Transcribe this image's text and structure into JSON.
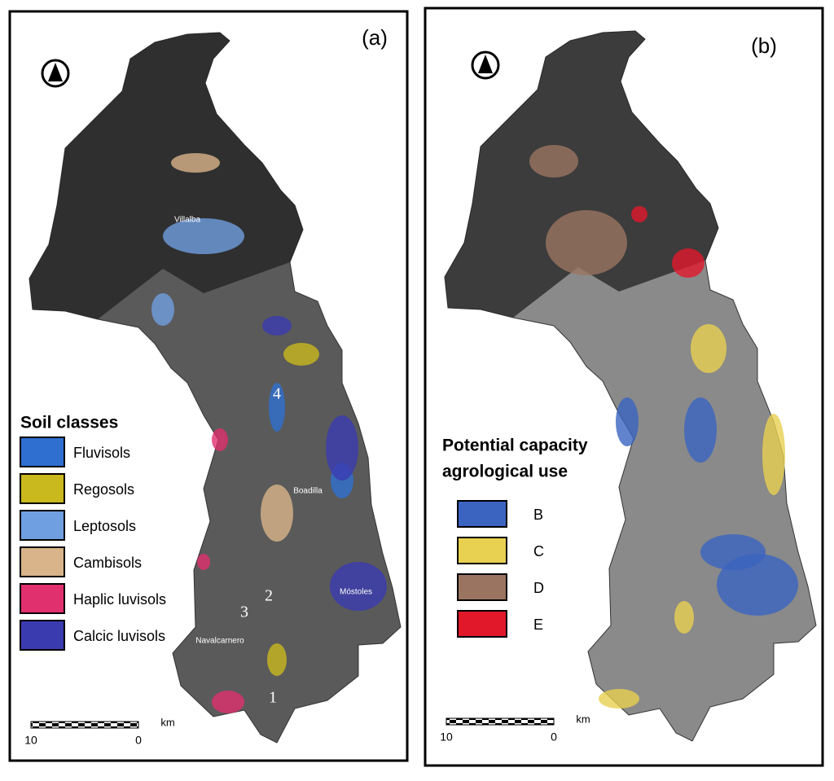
{
  "panels": [
    {
      "label": "(a)",
      "legend": {
        "title_lines": [
          "Soil classes"
        ],
        "items": [
          {
            "label": "Fluvisols",
            "color": "#2f6fd0"
          },
          {
            "label": "Regosols",
            "color": "#c9b81e"
          },
          {
            "label": "Leptosols",
            "color": "#6f9fe0"
          },
          {
            "label": "Cambisols",
            "color": "#d9b48a"
          },
          {
            "label": "Haplic luvisols",
            "color": "#e0306e"
          },
          {
            "label": "Calcic luvisols",
            "color": "#3b3bb0"
          }
        ]
      },
      "places": [
        "Villalba",
        "Boadilla",
        "Móstoles",
        "Navalcarnero"
      ],
      "sites": [
        "1",
        "2",
        "3",
        "4"
      ],
      "scale": {
        "left": "10",
        "right": "0",
        "unit": "km"
      }
    },
    {
      "label": "(b)",
      "legend": {
        "title_lines": [
          "Potential capacity",
          "agrological use"
        ],
        "items": [
          {
            "label": "B",
            "color": "#3a64c0"
          },
          {
            "label": "C",
            "color": "#e8d050"
          },
          {
            "label": "D",
            "color": "#9a7460"
          },
          {
            "label": "E",
            "color": "#e0182a"
          }
        ]
      },
      "scale": {
        "left": "10",
        "right": "0",
        "unit": "km"
      }
    }
  ]
}
